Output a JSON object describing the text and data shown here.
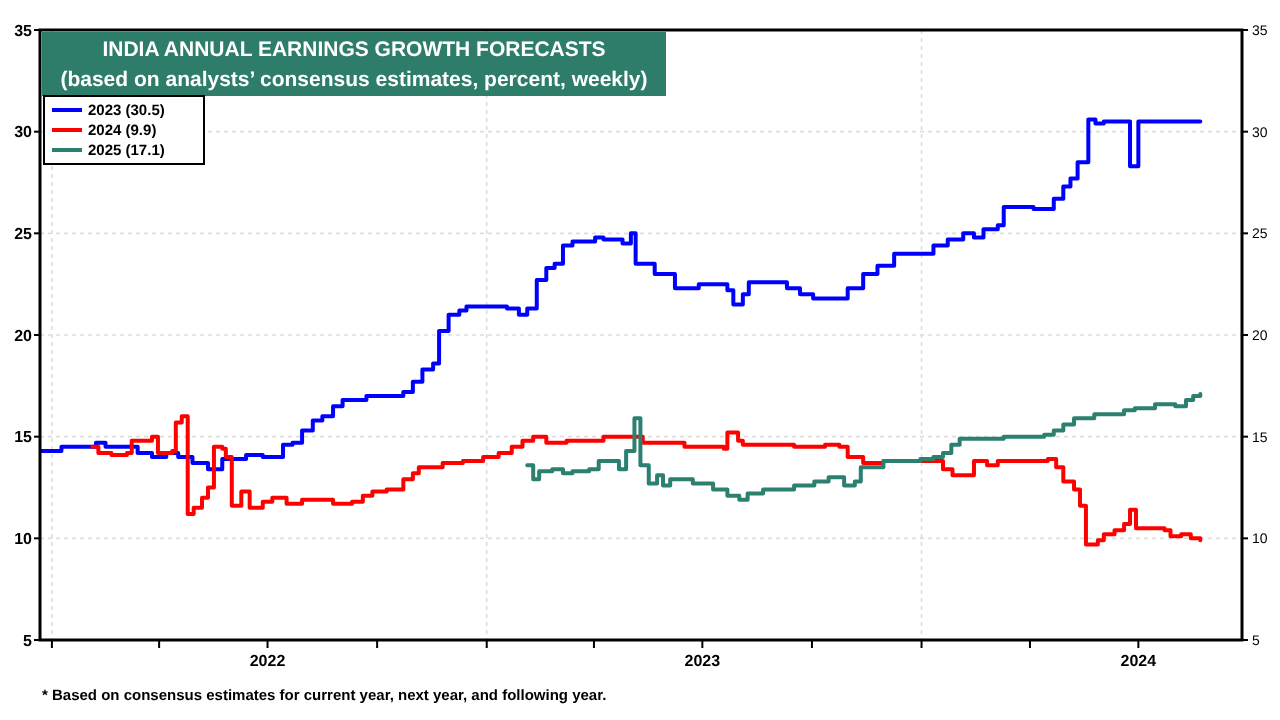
{
  "chart_data": {
    "type": "step",
    "title": "INDIA ANNUAL EARNINGS GROWTH FORECASTS",
    "subtitle": "(based on analysts’ consensus estimates, percent, weekly)",
    "annotations": [
      "* Based on consensus estimates for current year, next year, and following year."
    ],
    "xlim": [
      "2021-12-22",
      "2024-09-26"
    ],
    "xticks": [
      {
        "value": "2022-01-01",
        "label": null
      },
      {
        "value": "2022-04-01",
        "label": null
      },
      {
        "value": "2022-07-01",
        "label": "2022"
      },
      {
        "value": "2022-10-01",
        "label": null
      },
      {
        "value": "2023-01-01",
        "label": null
      },
      {
        "value": "2023-04-01",
        "label": null
      },
      {
        "value": "2023-07-01",
        "label": "2023"
      },
      {
        "value": "2023-10-01",
        "label": null
      },
      {
        "value": "2024-01-01",
        "label": null
      },
      {
        "value": "2024-04-01",
        "label": null
      },
      {
        "value": "2024-07-01",
        "label": "2024"
      }
    ],
    "ylim": [
      5,
      35
    ],
    "yticks": [
      5,
      10,
      15,
      20,
      25,
      30,
      35
    ],
    "y2lim": [
      5,
      35
    ],
    "y2ticks": [
      5,
      10,
      15,
      20,
      25,
      30,
      35
    ],
    "grid": true,
    "legend": "top left",
    "line_style": "solid",
    "marker": "none",
    "series": [
      {
        "name": "2023 (30.5)",
        "color": "#0000ff",
        "x": [
          "2021-12-23",
          "2022-01-09",
          "2022-02-07",
          "2022-02-15",
          "2022-03-14",
          "2022-03-26",
          "2022-04-07",
          "2022-04-17",
          "2022-04-29",
          "2022-05-12",
          "2022-05-24",
          "2022-06-13",
          "2022-06-27",
          "2022-07-14",
          "2022-07-22",
          "2022-07-30",
          "2022-08-08",
          "2022-08-16",
          "2022-08-25",
          "2022-09-02",
          "2022-09-22",
          "2022-10-23",
          "2022-10-31",
          "2022-11-08",
          "2022-11-17",
          "2022-11-22",
          "2022-11-30",
          "2022-12-09",
          "2022-12-15",
          "2023-01-18",
          "2023-01-28",
          "2023-02-04",
          "2023-02-12",
          "2023-02-20",
          "2023-02-27",
          "2023-03-06",
          "2023-03-14",
          "2023-04-02",
          "2023-04-09",
          "2023-04-25",
          "2023-05-02",
          "2023-05-06",
          "2023-05-22",
          "2023-06-08",
          "2023-06-28",
          "2023-07-22",
          "2023-07-27",
          "2023-08-04",
          "2023-08-09",
          "2023-09-10",
          "2023-09-21",
          "2023-10-02",
          "2023-10-31",
          "2023-11-13",
          "2023-11-25",
          "2023-12-09",
          "2024-01-11",
          "2024-01-23",
          "2024-02-05",
          "2024-02-14",
          "2024-02-22",
          "2024-03-05",
          "2024-03-10",
          "2024-04-04",
          "2024-04-21",
          "2024-04-29",
          "2024-05-05",
          "2024-05-11",
          "2024-05-20",
          "2024-05-26",
          "2024-06-02",
          "2024-06-24",
          "2024-07-01",
          "2024-08-22"
        ],
        "values": [
          14.3,
          14.5,
          14.7,
          14.5,
          14.2,
          14.0,
          14.2,
          14.0,
          13.7,
          13.4,
          13.9,
          14.1,
          14.0,
          14.6,
          14.7,
          15.3,
          15.8,
          16.0,
          16.5,
          16.8,
          17.0,
          17.2,
          17.7,
          18.3,
          18.6,
          20.2,
          21.0,
          21.2,
          21.4,
          21.3,
          21.0,
          21.3,
          22.7,
          23.3,
          23.5,
          24.4,
          24.6,
          24.8,
          24.7,
          24.5,
          25.0,
          23.5,
          23.0,
          22.3,
          22.5,
          22.2,
          21.5,
          22.0,
          22.6,
          22.3,
          22.0,
          21.8,
          22.3,
          23.0,
          23.4,
          24.0,
          24.4,
          24.7,
          25.0,
          24.8,
          25.2,
          25.4,
          26.3,
          26.2,
          26.7,
          27.3,
          27.7,
          28.5,
          30.6,
          30.4,
          30.5,
          28.3,
          30.5,
          30.5
        ]
      },
      {
        "name": "2024 (9.9)",
        "color": "#ff0000",
        "x": [
          "2022-02-04",
          "2022-02-09",
          "2022-02-20",
          "2022-03-05",
          "2022-03-09",
          "2022-03-26",
          "2022-03-31",
          "2022-04-12",
          "2022-04-15",
          "2022-04-20",
          "2022-04-25",
          "2022-04-30",
          "2022-05-07",
          "2022-05-12",
          "2022-05-17",
          "2022-05-24",
          "2022-05-27",
          "2022-06-01",
          "2022-06-09",
          "2022-06-16",
          "2022-06-27",
          "2022-07-05",
          "2022-07-17",
          "2022-07-30",
          "2022-08-25",
          "2022-09-10",
          "2022-09-19",
          "2022-09-27",
          "2022-10-09",
          "2022-10-23",
          "2022-10-31",
          "2022-11-05",
          "2022-11-25",
          "2022-12-12",
          "2022-12-29",
          "2023-01-11",
          "2023-01-22",
          "2023-01-31",
          "2023-02-09",
          "2023-02-20",
          "2023-03-09",
          "2023-04-09",
          "2023-05-12",
          "2023-06-16",
          "2023-07-19",
          "2023-07-22",
          "2023-07-31",
          "2023-08-04",
          "2023-09-16",
          "2023-10-12",
          "2023-10-24",
          "2023-10-31",
          "2023-11-13",
          "2023-11-30",
          "2024-01-19",
          "2024-01-27",
          "2024-02-14",
          "2024-02-25",
          "2024-03-05",
          "2024-04-16",
          "2024-04-23",
          "2024-04-29",
          "2024-05-08",
          "2024-05-13",
          "2024-05-18",
          "2024-05-28",
          "2024-06-02",
          "2024-06-11",
          "2024-06-19",
          "2024-06-24",
          "2024-06-29",
          "2024-07-23",
          "2024-07-28",
          "2024-08-06",
          "2024-08-14",
          "2024-08-22"
        ],
        "values": [
          14.5,
          14.2,
          14.1,
          14.2,
          14.8,
          15.0,
          14.2,
          14.3,
          15.7,
          16.0,
          11.2,
          11.5,
          12.0,
          12.5,
          14.5,
          14.4,
          14.0,
          11.6,
          12.3,
          11.5,
          11.8,
          12.0,
          11.7,
          11.9,
          11.7,
          11.8,
          12.1,
          12.3,
          12.4,
          12.9,
          13.2,
          13.5,
          13.7,
          13.8,
          14.0,
          14.2,
          14.5,
          14.8,
          15.0,
          14.7,
          14.8,
          15.0,
          14.7,
          14.5,
          14.4,
          15.2,
          14.8,
          14.6,
          14.5,
          14.6,
          14.5,
          14.0,
          13.7,
          13.8,
          13.4,
          13.1,
          13.8,
          13.6,
          13.8,
          13.9,
          13.5,
          12.8,
          12.4,
          11.6,
          9.7,
          9.9,
          10.2,
          10.4,
          10.7,
          11.4,
          10.5,
          10.4,
          10.1,
          10.2,
          10.0,
          9.9
        ]
      },
      {
        "name": "2025 (17.1)",
        "color": "#2b8070",
        "x": [
          "2023-02-04",
          "2023-02-09",
          "2023-02-14",
          "2023-02-25",
          "2023-03-06",
          "2023-03-14",
          "2023-03-28",
          "2023-04-05",
          "2023-04-22",
          "2023-04-28",
          "2023-05-05",
          "2023-05-10",
          "2023-05-17",
          "2023-05-24",
          "2023-05-29",
          "2023-06-04",
          "2023-06-23",
          "2023-07-10",
          "2023-07-22",
          "2023-08-01",
          "2023-08-08",
          "2023-08-21",
          "2023-09-16",
          "2023-10-03",
          "2023-10-15",
          "2023-10-28",
          "2023-11-06",
          "2023-11-11",
          "2023-11-30",
          "2023-12-31",
          "2024-01-11",
          "2024-01-19",
          "2024-01-26",
          "2024-02-02",
          "2024-03-10",
          "2024-04-13",
          "2024-04-21",
          "2024-04-29",
          "2024-05-08",
          "2024-05-25",
          "2024-06-19",
          "2024-06-28",
          "2024-07-15",
          "2024-08-01",
          "2024-08-10",
          "2024-08-16",
          "2024-08-22"
        ],
        "values": [
          13.6,
          12.9,
          13.3,
          13.4,
          13.2,
          13.3,
          13.4,
          13.8,
          13.4,
          14.3,
          15.9,
          13.6,
          12.7,
          13.1,
          12.6,
          12.9,
          12.7,
          12.4,
          12.1,
          11.9,
          12.2,
          12.4,
          12.6,
          12.8,
          13.0,
          12.6,
          12.8,
          13.5,
          13.8,
          13.9,
          14.0,
          14.2,
          14.6,
          14.9,
          15.0,
          15.1,
          15.3,
          15.6,
          15.9,
          16.1,
          16.3,
          16.4,
          16.6,
          16.5,
          16.8,
          17.0,
          17.1
        ]
      }
    ]
  }
}
